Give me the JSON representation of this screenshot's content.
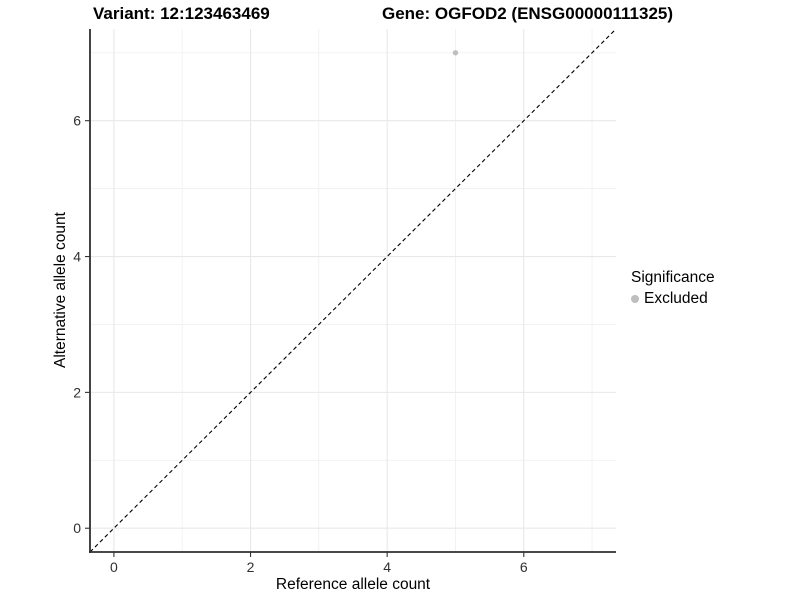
{
  "header": {
    "title_left": "Variant: 12:123463469",
    "title_right": "Gene: OGFOD2 (ENSG00000111325)"
  },
  "chart_data": {
    "type": "scatter",
    "title": "Variant: 12:123463469 — Gene: OGFOD2 (ENSG00000111325)",
    "xlabel": "Reference allele count",
    "ylabel": "Alternative allele count",
    "xlim": [
      -0.35,
      7.35
    ],
    "ylim": [
      -0.35,
      7.35
    ],
    "x_ticks": [
      0,
      2,
      4,
      6
    ],
    "y_ticks": [
      0,
      2,
      4,
      6
    ],
    "x_minor_gridlines": [
      1,
      3,
      5,
      7
    ],
    "y_minor_gridlines": [
      1,
      3,
      5,
      7
    ],
    "grid": true,
    "reference_line": {
      "type": "identity",
      "style": "dashed",
      "color": "#000000"
    },
    "series": [
      {
        "name": "Excluded",
        "marker": "circle",
        "color": "#bebebe",
        "points": [
          {
            "x": 5,
            "y": 7
          }
        ]
      }
    ],
    "legend": {
      "title": "Significance",
      "position": "right",
      "items": [
        {
          "label": "Excluded",
          "color": "#bebebe"
        }
      ]
    }
  },
  "colors": {
    "background": "#ffffff",
    "grid_major": "#e8e8e8",
    "grid_minor": "#f1f1f1",
    "axis_line": "#2f2f2f",
    "tick_mark": "#333333",
    "tick_label": "#303030",
    "reference_line": "#000000",
    "point": "#bebebe"
  }
}
